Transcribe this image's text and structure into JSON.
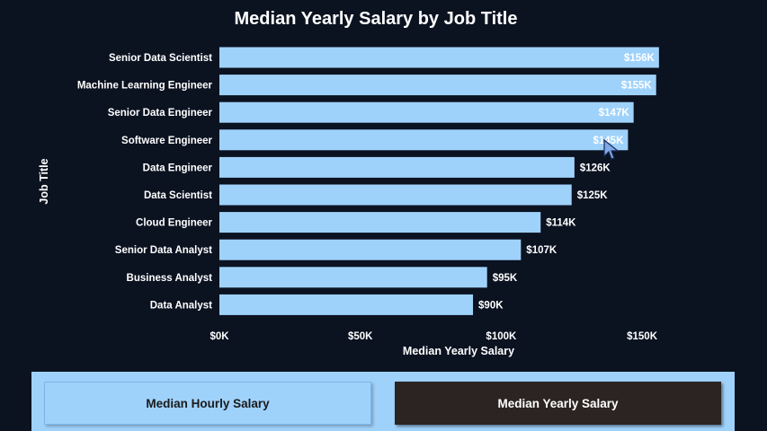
{
  "chart_data": {
    "type": "bar",
    "orientation": "horizontal",
    "title": "Median Yearly Salary by Job Title",
    "xlabel": "Median Yearly Salary",
    "ylabel": "Job Title",
    "categories": [
      "Senior Data Scientist",
      "Machine Learning Engineer",
      "Senior Data Engineer",
      "Software Engineer",
      "Data Engineer",
      "Data Scientist",
      "Cloud Engineer",
      "Senior Data Analyst",
      "Business Analyst",
      "Data Analyst"
    ],
    "values": [
      156000,
      155000,
      147000,
      145000,
      126000,
      125000,
      114000,
      107000,
      95000,
      90000
    ],
    "data_labels": [
      "$156K",
      "$155K",
      "$147K",
      "$145K",
      "$126K",
      "$125K",
      "$114K",
      "$107K",
      "$95K",
      "$90K"
    ],
    "xticks": [
      0,
      50000,
      100000,
      150000
    ],
    "xtick_labels": [
      "$0K",
      "$50K",
      "$100K",
      "$150K"
    ],
    "xlim": [
      0,
      157000
    ],
    "grid": false,
    "legend": "none",
    "bar_color": "#9fd2fb"
  },
  "toggles": {
    "hourly_label": "Median Hourly Salary",
    "yearly_label": "Median Yearly Salary",
    "selected": "Median Yearly Salary"
  },
  "colors": {
    "background": "#0b1220",
    "bar": "#9fd2fb",
    "text": "#ffffff",
    "selected_toggle": "#2b2422",
    "panel": "#9fd2fb"
  }
}
